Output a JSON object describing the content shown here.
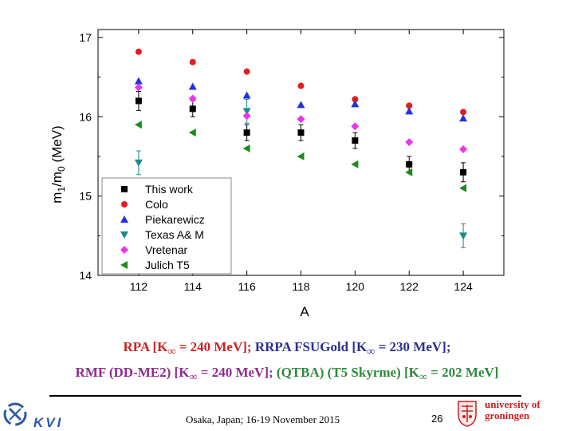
{
  "chart_data": {
    "type": "scatter",
    "title": "",
    "xlabel": "A",
    "ylabel": "m1/m0 (MeV)",
    "xlim": [
      110.5,
      125.5
    ],
    "ylim": [
      14,
      17.1
    ],
    "xticks": [
      112,
      114,
      116,
      118,
      120,
      122,
      124
    ],
    "yticks": [
      14,
      15,
      16,
      17
    ],
    "legend_position": "bottom-left",
    "series": [
      {
        "name": "This work",
        "marker": "square",
        "color": "#000000",
        "x": [
          112,
          114,
          116,
          118,
          120,
          122,
          124
        ],
        "y": [
          16.2,
          16.1,
          15.8,
          15.8,
          15.7,
          15.4,
          15.3
        ],
        "err": [
          0.12,
          0.1,
          0.1,
          0.1,
          0.1,
          0.1,
          0.12
        ]
      },
      {
        "name": "Colo",
        "marker": "circle",
        "color": "#e02020",
        "x": [
          112,
          114,
          116,
          118,
          120,
          122,
          124
        ],
        "y": [
          16.82,
          16.69,
          16.57,
          16.39,
          16.22,
          16.14,
          16.06
        ]
      },
      {
        "name": "Piekarewicz",
        "marker": "triangle-up",
        "color": "#2233dd",
        "x": [
          112,
          114,
          116,
          118,
          120,
          122,
          124
        ],
        "y": [
          16.45,
          16.38,
          16.27,
          16.15,
          16.16,
          16.07,
          15.98
        ]
      },
      {
        "name": "Texas A& M",
        "marker": "triangle-down",
        "color": "#1b8a8a",
        "x": [
          112,
          116,
          124
        ],
        "y": [
          15.42,
          16.07,
          14.5
        ],
        "err": [
          0.15,
          0.15,
          0.15
        ]
      },
      {
        "name": "Vretenar",
        "marker": "diamond",
        "color": "#ee33ee",
        "x": [
          112,
          114,
          116,
          118,
          120,
          122,
          124
        ],
        "y": [
          16.37,
          16.23,
          16.01,
          15.97,
          15.88,
          15.68,
          15.59
        ]
      },
      {
        "name": "Julich T5",
        "marker": "triangle-left",
        "color": "#1e8a1e",
        "x": [
          112,
          114,
          116,
          118,
          120,
          122,
          124
        ],
        "y": [
          15.9,
          15.8,
          15.6,
          15.5,
          15.4,
          15.3,
          15.1
        ]
      }
    ]
  },
  "caption": {
    "line1": {
      "p1": "RPA [K",
      "p2": "∞",
      "p3": " = 240 MeV]; ",
      "p4": "RRPA FSUGold [K",
      "p5": "∞",
      "p6": " = 230 MeV];"
    },
    "line2": {
      "p1": "RMF (DD-ME2) [K",
      "p2": "∞",
      "p3": " = 240 MeV]; ",
      "p4": "(QTBA) (T5 Skyrme) [K",
      "p5": "∞",
      "p6": " = 202 MeV]"
    }
  },
  "footer": {
    "kvi_text": "KVI",
    "location": "Osaka, Japan; 16-19 November 2015",
    "page_number": "26",
    "university_line1": "university of",
    "university_line2": "groningen"
  },
  "colors": {
    "caption_rpa": "#cc2222",
    "caption_rrpa": "#2b2f8f",
    "caption_rmf": "#8e2d8e",
    "caption_qtba": "#2f8a3c",
    "university_red": "#cc1f1f"
  }
}
